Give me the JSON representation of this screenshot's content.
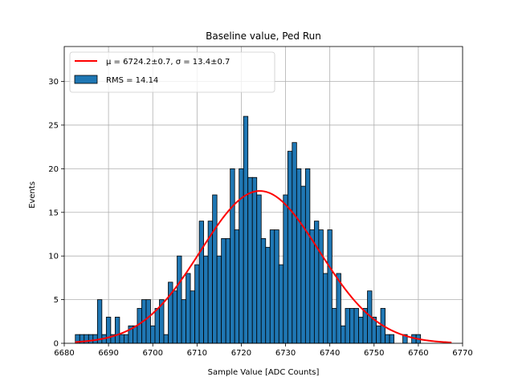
{
  "chart_data": {
    "type": "bar",
    "title": "Baseline value, Ped Run",
    "xlabel": "Sample Value [ADC Counts]",
    "ylabel": "Events",
    "xlim": [
      6680,
      6770
    ],
    "ylim": [
      0,
      34
    ],
    "grid": true,
    "legend_position": "top-left",
    "xticks": [
      6680,
      6690,
      6700,
      6710,
      6720,
      6730,
      6740,
      6750,
      6760,
      6770
    ],
    "yticks": [
      0,
      5,
      10,
      15,
      20,
      25,
      30
    ],
    "bin_width": 1,
    "bins": [
      {
        "x": 6683,
        "count": 1
      },
      {
        "x": 6684,
        "count": 1
      },
      {
        "x": 6685,
        "count": 1
      },
      {
        "x": 6686,
        "count": 1
      },
      {
        "x": 6687,
        "count": 1
      },
      {
        "x": 6688,
        "count": 5
      },
      {
        "x": 6689,
        "count": 1
      },
      {
        "x": 6690,
        "count": 3
      },
      {
        "x": 6691,
        "count": 1
      },
      {
        "x": 6692,
        "count": 3
      },
      {
        "x": 6693,
        "count": 1
      },
      {
        "x": 6694,
        "count": 1
      },
      {
        "x": 6695,
        "count": 2
      },
      {
        "x": 6696,
        "count": 2
      },
      {
        "x": 6697,
        "count": 4
      },
      {
        "x": 6698,
        "count": 5
      },
      {
        "x": 6699,
        "count": 5
      },
      {
        "x": 6700,
        "count": 2
      },
      {
        "x": 6701,
        "count": 4
      },
      {
        "x": 6702,
        "count": 5
      },
      {
        "x": 6703,
        "count": 1
      },
      {
        "x": 6704,
        "count": 7
      },
      {
        "x": 6705,
        "count": 6
      },
      {
        "x": 6706,
        "count": 10
      },
      {
        "x": 6707,
        "count": 5
      },
      {
        "x": 6708,
        "count": 8
      },
      {
        "x": 6709,
        "count": 6
      },
      {
        "x": 6710,
        "count": 9
      },
      {
        "x": 6711,
        "count": 14
      },
      {
        "x": 6712,
        "count": 10
      },
      {
        "x": 6713,
        "count": 14
      },
      {
        "x": 6714,
        "count": 17
      },
      {
        "x": 6715,
        "count": 10
      },
      {
        "x": 6716,
        "count": 12
      },
      {
        "x": 6717,
        "count": 12
      },
      {
        "x": 6718,
        "count": 20
      },
      {
        "x": 6719,
        "count": 13
      },
      {
        "x": 6720,
        "count": 20
      },
      {
        "x": 6721,
        "count": 26
      },
      {
        "x": 6722,
        "count": 19
      },
      {
        "x": 6723,
        "count": 19
      },
      {
        "x": 6724,
        "count": 17
      },
      {
        "x": 6725,
        "count": 12
      },
      {
        "x": 6726,
        "count": 11
      },
      {
        "x": 6727,
        "count": 13
      },
      {
        "x": 6728,
        "count": 13
      },
      {
        "x": 6729,
        "count": 9
      },
      {
        "x": 6730,
        "count": 17
      },
      {
        "x": 6731,
        "count": 22
      },
      {
        "x": 6732,
        "count": 23
      },
      {
        "x": 6733,
        "count": 20
      },
      {
        "x": 6734,
        "count": 18
      },
      {
        "x": 6735,
        "count": 20
      },
      {
        "x": 6736,
        "count": 13
      },
      {
        "x": 6737,
        "count": 14
      },
      {
        "x": 6738,
        "count": 13
      },
      {
        "x": 6739,
        "count": 8
      },
      {
        "x": 6740,
        "count": 13
      },
      {
        "x": 6741,
        "count": 4
      },
      {
        "x": 6742,
        "count": 8
      },
      {
        "x": 6743,
        "count": 2
      },
      {
        "x": 6744,
        "count": 4
      },
      {
        "x": 6745,
        "count": 4
      },
      {
        "x": 6746,
        "count": 4
      },
      {
        "x": 6747,
        "count": 3
      },
      {
        "x": 6748,
        "count": 4
      },
      {
        "x": 6749,
        "count": 6
      },
      {
        "x": 6750,
        "count": 3
      },
      {
        "x": 6751,
        "count": 2
      },
      {
        "x": 6752,
        "count": 4
      },
      {
        "x": 6753,
        "count": 1
      },
      {
        "x": 6754,
        "count": 1
      },
      {
        "x": 6757,
        "count": 1
      },
      {
        "x": 6759,
        "count": 1
      },
      {
        "x": 6760,
        "count": 1
      }
    ],
    "fit": {
      "type": "gaussian",
      "mu": 6724.2,
      "sigma": 13.4,
      "amplitude": 17.45,
      "x_range": [
        6682.5,
        6767.5
      ]
    },
    "series": [
      {
        "name": "$\\mu = 6724.2 \\pm 0.7$, $\\sigma = 13.4 \\pm 0.7$",
        "legend_label": "μ = 6724.2±0.7, σ = 13.4±0.7",
        "kind": "line",
        "color": "#ff0000"
      },
      {
        "name": "RMS = 14.14",
        "legend_label": "RMS = 14.14",
        "kind": "histogram",
        "color": "#1f77b4"
      }
    ]
  }
}
